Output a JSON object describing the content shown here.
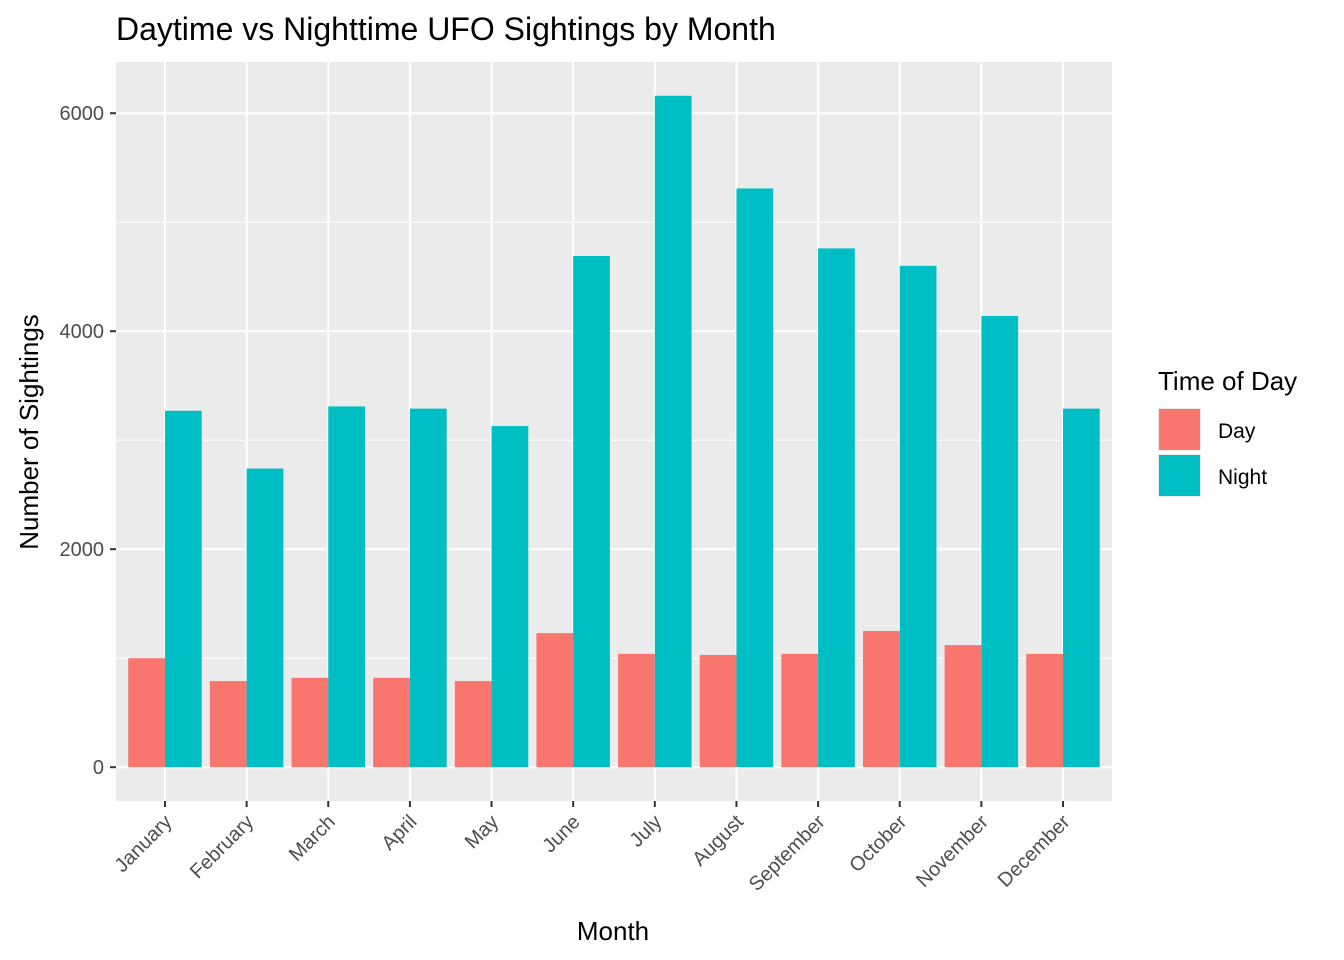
{
  "chart_data": {
    "type": "bar",
    "title": "Daytime vs Nighttime UFO Sightings by Month",
    "xlabel": "Month",
    "ylabel": "Number of Sightings",
    "categories": [
      "January",
      "February",
      "March",
      "April",
      "May",
      "June",
      "July",
      "August",
      "September",
      "October",
      "November",
      "December"
    ],
    "series": [
      {
        "name": "Day",
        "color": "#F8766D",
        "values": [
          1000,
          790,
          820,
          820,
          790,
          1230,
          1040,
          1030,
          1040,
          1250,
          1120,
          1040
        ]
      },
      {
        "name": "Night",
        "color": "#00BFC4",
        "values": [
          3270,
          2740,
          3310,
          3290,
          3130,
          4690,
          6160,
          5310,
          4760,
          4600,
          4140,
          3290
        ]
      }
    ],
    "ylim": [
      -310,
      6470
    ],
    "yticks": [
      0,
      2000,
      4000,
      6000
    ],
    "ytick_labels": [
      "0",
      "2000",
      "4000",
      "6000"
    ],
    "legend": {
      "title": "Time of Day",
      "position": "right"
    },
    "grid": true,
    "panel_background": "#EBEBEB",
    "grid_color": "#FFFFFF"
  }
}
